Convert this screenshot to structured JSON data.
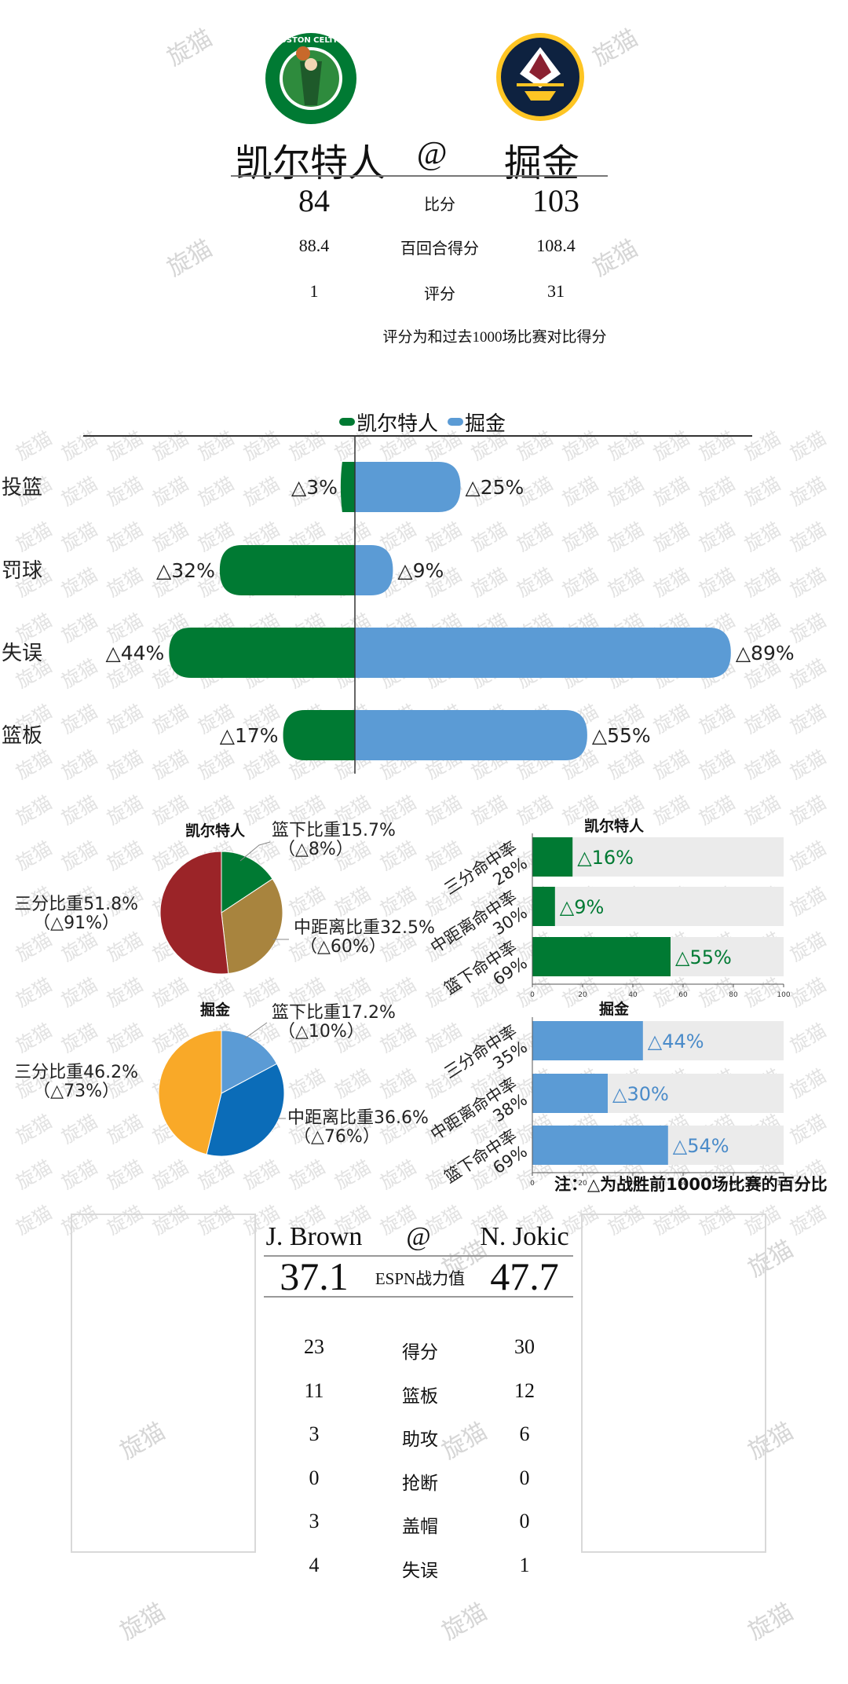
{
  "header": {
    "team_left": "凯尔特人",
    "at_symbol": "@",
    "team_right": "掘金",
    "rows": [
      {
        "left": "84",
        "label": "比分",
        "right": "103"
      },
      {
        "left": "88.4",
        "label": "百回合得分",
        "right": "108.4"
      },
      {
        "left": "1",
        "label": "评分",
        "right": "31"
      }
    ],
    "note": "评分为和过去1000场比赛对比得分"
  },
  "watermark": {
    "text": "旋猫"
  },
  "colors": {
    "celtics_green": "#007A33",
    "nuggets_blue": "#5B9BD5",
    "pie_red": "#9B2428",
    "pie_gold": "#A8843E",
    "pie_orange": "#F9A928",
    "pie_darkblue": "#0B6CB8",
    "bar_track": "#EBEBEB",
    "nuggets_navy": "#0E2240",
    "nuggets_yellow": "#FEC524"
  },
  "logos": {
    "left_icon": "celtics-logo-icon",
    "right_icon": "nuggets-logo-icon",
    "left_text": "BOSTON CELTICS"
  },
  "chart_data": [
    {
      "type": "bar",
      "orientation": "diverging-horizontal",
      "legend": [
        "凯尔特人",
        "掘金"
      ],
      "legend_position": "top-center",
      "categories": [
        "投篮",
        "罚球",
        "失误",
        "篮板"
      ],
      "series": [
        {
          "name": "凯尔特人",
          "values": [
            3,
            32,
            44,
            17
          ],
          "labels": [
            "△3%",
            "△32%",
            "△44%",
            "△17%"
          ]
        },
        {
          "name": "掘金",
          "values": [
            25,
            9,
            89,
            55
          ],
          "labels": [
            "△25%",
            "△9%",
            "△89%",
            "△55%"
          ]
        }
      ]
    },
    {
      "type": "pie",
      "title": "凯尔特人",
      "slices": [
        {
          "label": "篮下比重15.7%",
          "sub": "（△8%）",
          "value": 15.7
        },
        {
          "label": "中距离比重32.5%",
          "sub": "（△60%）",
          "value": 32.5
        },
        {
          "label": "三分比重51.8%",
          "sub": "（△91%）",
          "value": 51.8
        }
      ]
    },
    {
      "type": "pie",
      "title": "掘金",
      "slices": [
        {
          "label": "篮下比重17.2%",
          "sub": "（△10%）",
          "value": 17.2
        },
        {
          "label": "中距离比重36.6%",
          "sub": "（△76%）",
          "value": 36.6
        },
        {
          "label": "三分比重46.2%",
          "sub": "（△73%）",
          "value": 46.2
        }
      ]
    },
    {
      "type": "bar",
      "orientation": "horizontal",
      "title": "凯尔特人",
      "categories": [
        [
          "三分命中率",
          "28%"
        ],
        [
          "中距离命中率",
          "30%"
        ],
        [
          "篮下命中率",
          "69%"
        ]
      ],
      "values": [
        16,
        9,
        55
      ],
      "labels": [
        "△16%",
        "△9%",
        "△55%"
      ],
      "xlim": [
        0,
        100
      ],
      "xticks": [
        "0",
        "20",
        "40",
        "60",
        "80",
        "100"
      ]
    },
    {
      "type": "bar",
      "orientation": "horizontal",
      "title": "掘金",
      "categories": [
        [
          "三分命中率",
          "35%"
        ],
        [
          "中距离命中率",
          "38%"
        ],
        [
          "篮下命中率",
          "69%"
        ]
      ],
      "values": [
        44,
        30,
        54
      ],
      "labels": [
        "△44%",
        "△30%",
        "△54%"
      ],
      "xlim": [
        0,
        100
      ],
      "xticks": [
        "0",
        "20",
        "40",
        "60",
        "80",
        "100"
      ]
    }
  ],
  "footnote": "注：△为战胜前1000场比赛的百分比",
  "players": {
    "left_name": "J. Brown",
    "at_symbol": "@",
    "right_name": "N. Jokic",
    "espn": {
      "left": "37.1",
      "label": "ESPN战力值",
      "right": "47.7"
    },
    "stats": [
      {
        "left": "23",
        "label": "得分",
        "right": "30"
      },
      {
        "left": "11",
        "label": "篮板",
        "right": "12"
      },
      {
        "left": "3",
        "label": "助攻",
        "right": "6"
      },
      {
        "left": "0",
        "label": "抢断",
        "right": "0"
      },
      {
        "left": "3",
        "label": "盖帽",
        "right": "0"
      },
      {
        "left": "4",
        "label": "失误",
        "right": "1"
      }
    ]
  }
}
